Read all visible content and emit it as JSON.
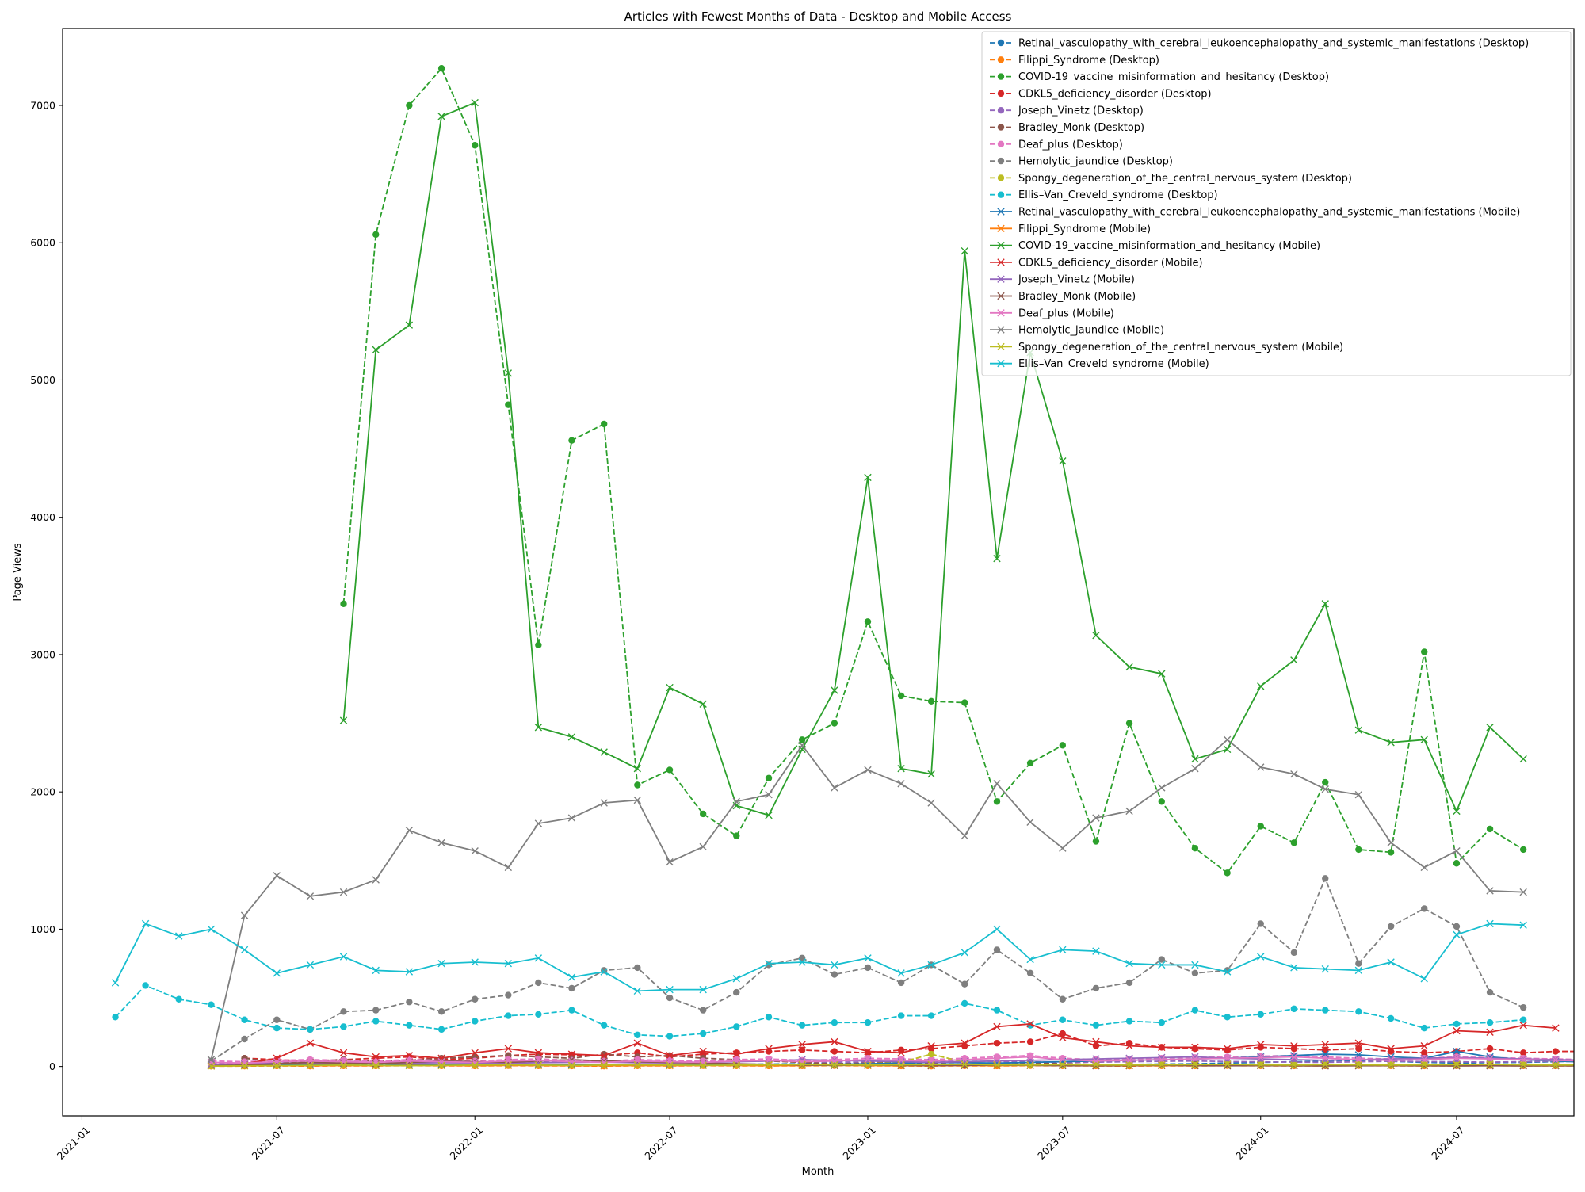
{
  "chart_data": {
    "type": "line",
    "title": "Articles with Fewest Months of Data - Desktop and Mobile Access",
    "xlabel": "Month",
    "ylabel": "Page Views",
    "xlim": [
      "2020-12-14",
      "2024-10-18"
    ],
    "ylim": [
      -360,
      7560
    ],
    "x_ticks": [
      "2021-01",
      "2021-07",
      "2022-01",
      "2022-07",
      "2023-01",
      "2023-07",
      "2024-01",
      "2024-07"
    ],
    "y_ticks": [
      0,
      1000,
      2000,
      3000,
      4000,
      5000,
      6000,
      7000
    ],
    "grid": false,
    "legend_position": "top-right",
    "colors": {
      "tab_blue": "#1f77b4",
      "tab_orange": "#ff7f0e",
      "tab_green": "#2ca02c",
      "tab_red": "#d62728",
      "tab_purple": "#9467bd",
      "tab_brown": "#8c564b",
      "tab_pink": "#e377c2",
      "tab_gray": "#7f7f7f",
      "tab_olive": "#bcbd22",
      "tab_cyan": "#17becf"
    },
    "series": [
      {
        "name": "Retinal_vasculopathy_with_cerebral_leukoencephalopathy_and_systemic_manifestations (Desktop)",
        "color": "#1f77b4",
        "style": "dashed",
        "marker": "circle",
        "start": "2021-05",
        "values": [
          10,
          12,
          14,
          10,
          12,
          15,
          14,
          12,
          14,
          12,
          15,
          14,
          13,
          12,
          14,
          15,
          16,
          18,
          20,
          25,
          15,
          14,
          12,
          16,
          14,
          13,
          12,
          14,
          15,
          18,
          20,
          25,
          30,
          35,
          40,
          45,
          38,
          30,
          25,
          28,
          30,
          35,
          40
        ]
      },
      {
        "name": "Filippi_Syndrome (Desktop)",
        "color": "#ff7f0e",
        "style": "dashed",
        "marker": "circle",
        "start": "2021-05",
        "values": [
          2,
          3,
          4,
          3,
          5,
          4,
          6,
          5,
          4,
          6,
          5,
          4,
          3,
          5,
          4,
          6,
          5,
          4,
          5,
          6,
          5,
          4,
          3,
          5,
          4,
          6,
          5,
          4,
          3,
          5,
          4,
          6,
          5,
          4,
          5,
          6,
          5,
          4,
          5,
          6,
          5,
          4,
          5
        ]
      },
      {
        "name": "COVID-19_vaccine_misinformation_and_hesitancy (Desktop)",
        "color": "#2ca02c",
        "style": "dashed",
        "marker": "circle",
        "start": "2021-09",
        "values": [
          3370,
          6060,
          7000,
          7270,
          6710,
          4820,
          3070,
          4560,
          4680,
          2050,
          2160,
          1840,
          1680,
          2100,
          2380,
          2500,
          3240,
          2700,
          2660,
          2650,
          1930,
          2210,
          2340,
          1640,
          2500,
          1930,
          1590,
          1410,
          1750,
          1630,
          2070,
          1580,
          1560,
          3020,
          1480,
          1730,
          1580
        ]
      },
      {
        "name": "CDKL5_deficiency_disorder (Desktop)",
        "color": "#d62728",
        "style": "dashed",
        "marker": "circle",
        "start": "2021-06",
        "values": [
          60,
          50,
          40,
          50,
          60,
          70,
          50,
          60,
          80,
          90,
          85,
          80,
          100,
          70,
          90,
          100,
          110,
          120,
          110,
          100,
          120,
          130,
          150,
          170,
          180,
          240,
          150,
          170,
          140,
          130,
          120,
          140,
          130,
          120,
          130,
          110,
          100,
          110,
          130,
          100,
          110,
          110
        ]
      },
      {
        "name": "Joseph_Vinetz (Desktop)",
        "color": "#9467bd",
        "style": "dashed",
        "marker": "circle",
        "start": "2021-05",
        "values": [
          20,
          25,
          30,
          28,
          26,
          30,
          32,
          30,
          34,
          30,
          32,
          35,
          34,
          30,
          32,
          36,
          38,
          40,
          36,
          34,
          30,
          32,
          35,
          38,
          36,
          34,
          30,
          32,
          35,
          38,
          40,
          36,
          34,
          32,
          30,
          35,
          38,
          36,
          34,
          32,
          35,
          38,
          36
        ]
      },
      {
        "name": "Bradley_Monk (Desktop)",
        "color": "#8c564b",
        "style": "dashed",
        "marker": "circle",
        "start": "2021-06",
        "values": [
          60,
          30,
          40,
          50,
          40,
          45,
          60,
          70,
          80,
          70,
          60,
          90,
          70,
          80,
          60,
          50,
          40,
          30,
          20,
          25,
          30,
          20,
          15,
          20,
          25,
          20,
          15,
          10,
          12,
          14,
          10,
          12,
          10,
          8,
          10,
          12,
          10,
          8,
          10,
          9,
          8,
          9
        ]
      },
      {
        "name": "Deaf_plus (Desktop)",
        "color": "#e377c2",
        "style": "dashed",
        "marker": "circle",
        "start": "2021-05",
        "values": [
          40,
          35,
          45,
          50,
          45,
          40,
          50,
          45,
          40,
          50,
          55,
          45,
          40,
          50,
          45,
          40,
          50,
          55,
          45,
          50,
          60,
          55,
          50,
          60,
          70,
          80,
          60,
          50,
          55,
          60,
          65,
          70,
          75,
          80,
          70,
          60,
          55,
          60,
          70,
          65,
          60,
          55,
          50
        ]
      },
      {
        "name": "Hemolytic_jaundice (Desktop)",
        "color": "#7f7f7f",
        "style": "dashed",
        "marker": "circle",
        "start": "2021-05",
        "values": [
          40,
          200,
          340,
          270,
          400,
          410,
          470,
          400,
          490,
          520,
          610,
          570,
          700,
          720,
          500,
          410,
          540,
          740,
          790,
          670,
          720,
          610,
          740,
          600,
          850,
          680,
          490,
          570,
          610,
          780,
          680,
          700,
          1040,
          830,
          1370,
          750,
          1020,
          1150,
          1020,
          540,
          430
        ]
      },
      {
        "name": "Spongy_degeneration_of_the_central_nervous_system (Desktop)",
        "color": "#bcbd22",
        "style": "dashed",
        "marker": "circle",
        "start": "2021-05",
        "values": [
          5,
          8,
          10,
          12,
          10,
          8,
          12,
          14,
          10,
          12,
          14,
          16,
          12,
          10,
          14,
          12,
          10,
          12,
          14,
          16,
          20,
          30,
          90,
          30,
          20,
          15,
          12,
          14,
          16,
          12,
          10,
          14,
          12,
          10,
          12,
          14,
          16,
          12,
          10,
          14,
          12,
          10,
          12
        ]
      },
      {
        "name": "Ellis–Van_Creveld_syndrome (Desktop)",
        "color": "#17becf",
        "style": "dashed",
        "marker": "circle",
        "start": "2021-02",
        "values": [
          360,
          590,
          490,
          450,
          340,
          280,
          270,
          290,
          330,
          300,
          270,
          330,
          370,
          380,
          410,
          300,
          230,
          220,
          240,
          290,
          360,
          300,
          320,
          320,
          370,
          370,
          460,
          410,
          300,
          340,
          300,
          330,
          320,
          410,
          360,
          380,
          420,
          410,
          400,
          350,
          280,
          310,
          320,
          340
        ]
      },
      {
        "name": "Retinal_vasculopathy_with_cerebral_leukoencephalopathy_and_systemic_manifestations (Mobile)",
        "color": "#1f77b4",
        "style": "solid",
        "marker": "x",
        "start": "2021-05",
        "values": [
          5,
          8,
          10,
          12,
          10,
          8,
          12,
          14,
          10,
          12,
          14,
          16,
          12,
          10,
          14,
          12,
          10,
          12,
          14,
          16,
          20,
          25,
          30,
          28,
          25,
          30,
          35,
          40,
          45,
          50,
          55,
          60,
          70,
          80,
          90,
          85,
          70,
          60,
          110,
          70,
          50,
          40,
          30
        ]
      },
      {
        "name": "Filippi_Syndrome (Mobile)",
        "color": "#ff7f0e",
        "style": "solid",
        "marker": "x",
        "start": "2021-05",
        "values": [
          3,
          5,
          6,
          5,
          7,
          6,
          8,
          7,
          6,
          8,
          7,
          6,
          5,
          7,
          6,
          8,
          7,
          6,
          7,
          8,
          7,
          6,
          5,
          7,
          6,
          8,
          7,
          6,
          5,
          7,
          6,
          8,
          7,
          6,
          7,
          8,
          7,
          6,
          7,
          8,
          7,
          6,
          7
        ]
      },
      {
        "name": "COVID-19_vaccine_misinformation_and_hesitancy (Mobile)",
        "color": "#2ca02c",
        "style": "solid",
        "marker": "x",
        "start": "2021-09",
        "values": [
          2520,
          5220,
          5400,
          6920,
          7020,
          5050,
          2470,
          2400,
          2290,
          2170,
          2760,
          2640,
          1900,
          1830,
          2310,
          2740,
          4290,
          2170,
          2130,
          5940,
          3700,
          5200,
          4410,
          3140,
          2910,
          2860,
          2240,
          2310,
          2770,
          2960,
          3370,
          2450,
          2360,
          2380,
          1860,
          2470,
          2240
        ]
      },
      {
        "name": "CDKL5_deficiency_disorder (Mobile)",
        "color": "#d62728",
        "style": "solid",
        "marker": "x",
        "start": "2021-06",
        "values": [
          20,
          60,
          170,
          100,
          70,
          80,
          60,
          100,
          130,
          100,
          90,
          80,
          170,
          80,
          110,
          90,
          130,
          160,
          180,
          110,
          100,
          150,
          170,
          290,
          310,
          210,
          180,
          150,
          140,
          140,
          130,
          160,
          150,
          160,
          170,
          130,
          150,
          260,
          250,
          300,
          280
        ]
      },
      {
        "name": "Joseph_Vinetz (Mobile)",
        "color": "#9467bd",
        "style": "solid",
        "marker": "x",
        "start": "2021-05",
        "values": [
          15,
          20,
          22,
          25,
          24,
          22,
          25,
          28,
          26,
          24,
          28,
          30,
          32,
          28,
          26,
          30,
          35,
          40,
          50,
          45,
          40,
          35,
          30,
          35,
          40,
          45,
          50,
          55,
          60,
          65,
          70,
          60,
          55,
          50,
          45,
          50,
          55,
          60,
          65,
          60,
          55,
          50,
          45
        ]
      },
      {
        "name": "Bradley_Monk (Mobile)",
        "color": "#8c564b",
        "style": "solid",
        "marker": "x",
        "start": "2021-05",
        "values": [
          5,
          10,
          20,
          30,
          25,
          20,
          30,
          40,
          35,
          30,
          40,
          50,
          40,
          35,
          30,
          25,
          20,
          15,
          10,
          8,
          10,
          8,
          6,
          8,
          10,
          8,
          6,
          5,
          6,
          8,
          6,
          5,
          6,
          5,
          4,
          5,
          6,
          5,
          4,
          5,
          4,
          5,
          4
        ]
      },
      {
        "name": "Deaf_plus (Mobile)",
        "color": "#e377c2",
        "style": "solid",
        "marker": "x",
        "start": "2021-05",
        "values": [
          30,
          25,
          35,
          40,
          35,
          30,
          40,
          35,
          30,
          40,
          45,
          35,
          30,
          40,
          35,
          30,
          40,
          45,
          35,
          40,
          50,
          45,
          40,
          50,
          60,
          70,
          50,
          40,
          45,
          50,
          55,
          60,
          65,
          70,
          60,
          50,
          45,
          50,
          60,
          55,
          50,
          45,
          40
        ]
      },
      {
        "name": "Hemolytic_jaundice (Mobile)",
        "color": "#7f7f7f",
        "style": "solid",
        "marker": "x",
        "start": "2021-05",
        "values": [
          50,
          1100,
          1390,
          1240,
          1270,
          1360,
          1720,
          1630,
          1570,
          1450,
          1770,
          1810,
          1920,
          1940,
          1490,
          1600,
          1930,
          1980,
          2340,
          2030,
          2160,
          2060,
          1920,
          1680,
          2060,
          1780,
          1590,
          1810,
          1860,
          2030,
          2170,
          2380,
          2180,
          2130,
          2020,
          1980,
          1630,
          1450,
          1570,
          1280,
          1270
        ]
      },
      {
        "name": "Spongy_degeneration_of_the_central_nervous_system (Mobile)",
        "color": "#bcbd22",
        "style": "solid",
        "marker": "x",
        "start": "2021-05",
        "values": [
          3,
          5,
          6,
          8,
          10,
          8,
          6,
          8,
          10,
          12,
          10,
          8,
          10,
          12,
          10,
          8,
          10,
          12,
          14,
          12,
          10,
          12,
          14,
          16,
          12,
          10,
          14,
          12,
          10,
          12,
          14,
          16,
          12,
          10,
          14,
          12,
          10,
          12,
          14,
          16,
          12,
          10,
          12
        ]
      },
      {
        "name": "Ellis–Van_Creveld_syndrome (Mobile)",
        "color": "#17becf",
        "style": "solid",
        "marker": "x",
        "start": "2021-02",
        "values": [
          610,
          1040,
          950,
          1000,
          850,
          680,
          740,
          800,
          700,
          690,
          750,
          760,
          750,
          790,
          650,
          690,
          550,
          560,
          560,
          640,
          750,
          760,
          740,
          790,
          680,
          740,
          830,
          1000,
          780,
          850,
          840,
          750,
          740,
          740,
          690,
          800,
          720,
          710,
          700,
          760,
          640,
          960,
          1040,
          1030
        ]
      }
    ]
  }
}
